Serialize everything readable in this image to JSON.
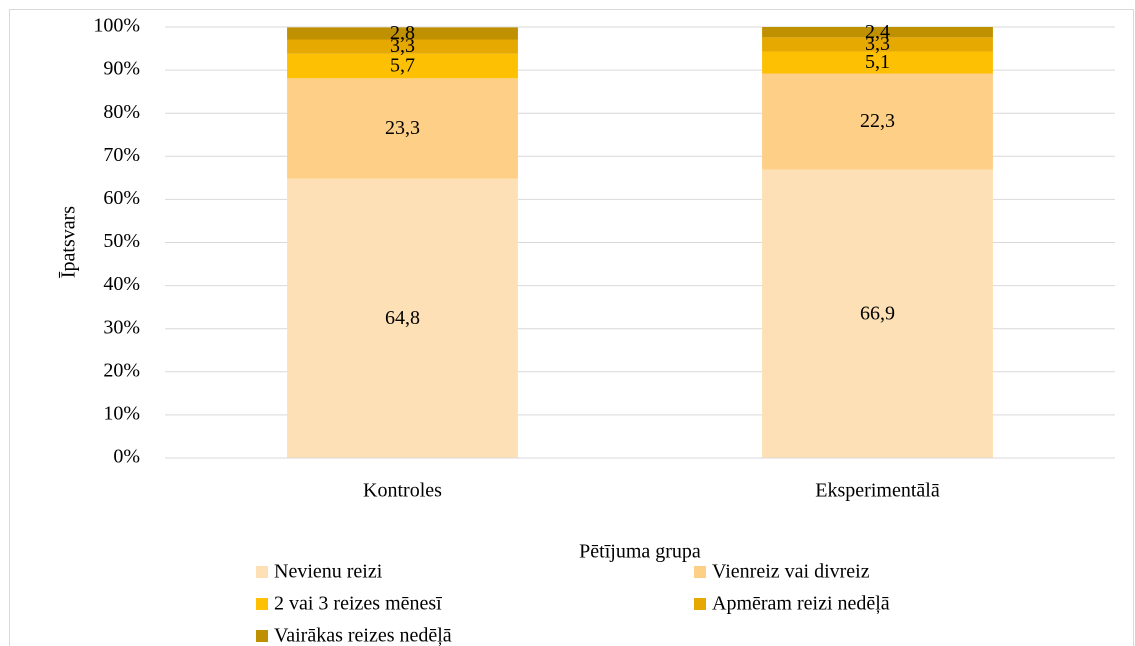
{
  "chart_data": {
    "type": "stacked_bar",
    "x_label": "Pētījuma grupa",
    "y_label": "Īpatsvars",
    "categories": [
      "Kontroles",
      "Eksperimentālā"
    ],
    "series": [
      {
        "name": "Nevienu reizi",
        "color": "#fde0b5",
        "values": [
          64.8,
          66.9
        ],
        "value_labels": [
          "64,8",
          "66,9"
        ]
      },
      {
        "name": "Vienreiz vai divreiz",
        "color": "#fecf87",
        "values": [
          23.3,
          22.3
        ],
        "value_labels": [
          "23,3",
          "22,3"
        ]
      },
      {
        "name": "2 vai 3 reizes mēnesī",
        "color": "#fec003",
        "values": [
          5.7,
          5.1
        ],
        "value_labels": [
          "5,7",
          "5,1"
        ]
      },
      {
        "name": "Apmēram reizi nedēļā",
        "color": "#e5a902",
        "values": [
          3.3,
          3.3
        ],
        "value_labels": [
          "3,3",
          "3,3"
        ]
      },
      {
        "name": "Vairākas reizes nedēļā",
        "color": "#bf9000",
        "values": [
          2.8,
          2.4
        ],
        "value_labels": [
          "2,8",
          "2,4"
        ]
      }
    ],
    "ylim": [
      0,
      100
    ],
    "yticks": [
      {
        "value": 0,
        "label": "0%"
      },
      {
        "value": 10,
        "label": "10%"
      },
      {
        "value": 20,
        "label": "20%"
      },
      {
        "value": 30,
        "label": "30%"
      },
      {
        "value": 40,
        "label": "40%"
      },
      {
        "value": 50,
        "label": "50%"
      },
      {
        "value": 60,
        "label": "60%"
      },
      {
        "value": 70,
        "label": "70%"
      },
      {
        "value": 80,
        "label": "80%"
      },
      {
        "value": 90,
        "label": "90%"
      },
      {
        "value": 100,
        "label": "100%"
      }
    ],
    "grid": true,
    "legend": "bottom"
  }
}
